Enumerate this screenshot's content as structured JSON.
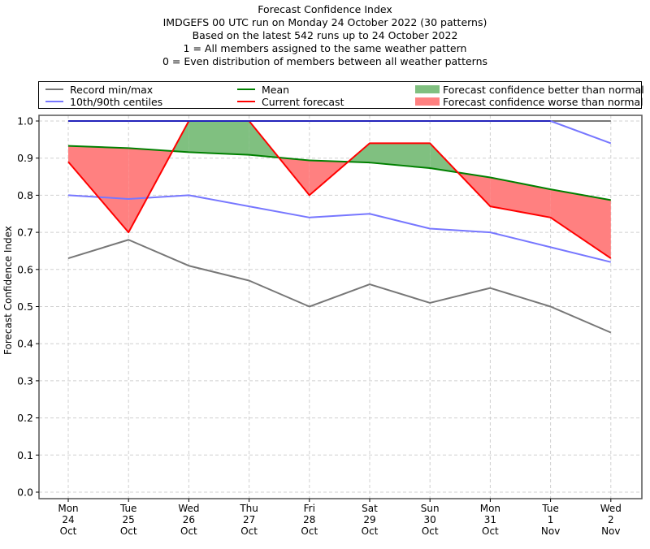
{
  "chart_data": {
    "type": "line",
    "title_lines": [
      "Forecast Confidence Index",
      "IMDGEFS 00 UTC run on Monday 24 October 2022 (30 patterns)",
      "Based on the latest 542 runs up to 24 October 2022",
      "1 = All members assigned to the same weather pattern",
      "0 = Even distribution of members between all weather patterns"
    ],
    "ylabel": "Forecast Confidence Index",
    "xlabel": "",
    "ylim": [
      0.0,
      1.0
    ],
    "yticks": [
      "0.0",
      "0.1",
      "0.2",
      "0.3",
      "0.4",
      "0.5",
      "0.6",
      "0.7",
      "0.8",
      "0.9",
      "1.0"
    ],
    "ytick_values": [
      0.0,
      0.1,
      0.2,
      0.3,
      0.4,
      0.5,
      0.6,
      0.7,
      0.8,
      0.9,
      1.0
    ],
    "categories": [
      {
        "day": "Mon",
        "date": "24",
        "month": "Oct"
      },
      {
        "day": "Tue",
        "date": "25",
        "month": "Oct"
      },
      {
        "day": "Wed",
        "date": "26",
        "month": "Oct"
      },
      {
        "day": "Thu",
        "date": "27",
        "month": "Oct"
      },
      {
        "day": "Fri",
        "date": "28",
        "month": "Oct"
      },
      {
        "day": "Sat",
        "date": "29",
        "month": "Oct"
      },
      {
        "day": "Sun",
        "date": "30",
        "month": "Oct"
      },
      {
        "day": "Mon",
        "date": "31",
        "month": "Oct"
      },
      {
        "day": "Tue",
        "date": "1",
        "month": "Nov"
      },
      {
        "day": "Wed",
        "date": "2",
        "month": "Nov"
      }
    ],
    "grid": true,
    "legend_position": "top",
    "series": [
      {
        "name": "Record max",
        "legend": "Record min/max",
        "color": "#777777",
        "values": [
          1.0,
          1.0,
          1.0,
          1.0,
          1.0,
          1.0,
          1.0,
          1.0,
          1.0,
          1.0
        ]
      },
      {
        "name": "Record min",
        "legend": "Record min/max",
        "color": "#777777",
        "values": [
          0.63,
          0.68,
          0.61,
          0.57,
          0.5,
          0.56,
          0.51,
          0.55,
          0.5,
          0.43
        ]
      },
      {
        "name": "90th centile",
        "legend": "10th/90th centiles",
        "color": "#7777ff",
        "values": [
          1.0,
          1.0,
          1.0,
          1.0,
          1.0,
          1.0,
          1.0,
          1.0,
          1.0,
          0.94
        ]
      },
      {
        "name": "10th centile",
        "legend": "10th/90th centiles",
        "color": "#7777ff",
        "values": [
          0.8,
          0.79,
          0.8,
          0.77,
          0.74,
          0.75,
          0.71,
          0.7,
          0.66,
          0.62
        ]
      },
      {
        "name": "Mean",
        "legend": "Mean",
        "color": "#008000",
        "values": [
          0.933,
          0.927,
          0.916,
          0.909,
          0.894,
          0.888,
          0.873,
          0.848,
          0.816,
          0.787
        ]
      },
      {
        "name": "Current forecast",
        "legend": "Current forecast",
        "color": "#ff0000",
        "values": [
          0.89,
          0.7,
          1.0,
          1.0,
          0.8,
          0.94,
          0.94,
          0.77,
          0.74,
          0.63
        ]
      }
    ],
    "legend": [
      {
        "label": "Record min/max",
        "kind": "line",
        "color": "#777777"
      },
      {
        "label": "10th/90th centiles",
        "kind": "line",
        "color": "#7777ff"
      },
      {
        "label": "Mean",
        "kind": "line",
        "color": "#008000"
      },
      {
        "label": "Current forecast",
        "kind": "line",
        "color": "#ff0000"
      },
      {
        "label": "Forecast confidence better than normal",
        "kind": "patch",
        "color": "#80c080"
      },
      {
        "label": "Forecast confidence worse than normal",
        "kind": "patch",
        "color": "#ff8080"
      }
    ],
    "fill_better_color": "#80c080",
    "fill_worse_color": "#ff8080",
    "overlap_line_color": "#2222bb"
  }
}
